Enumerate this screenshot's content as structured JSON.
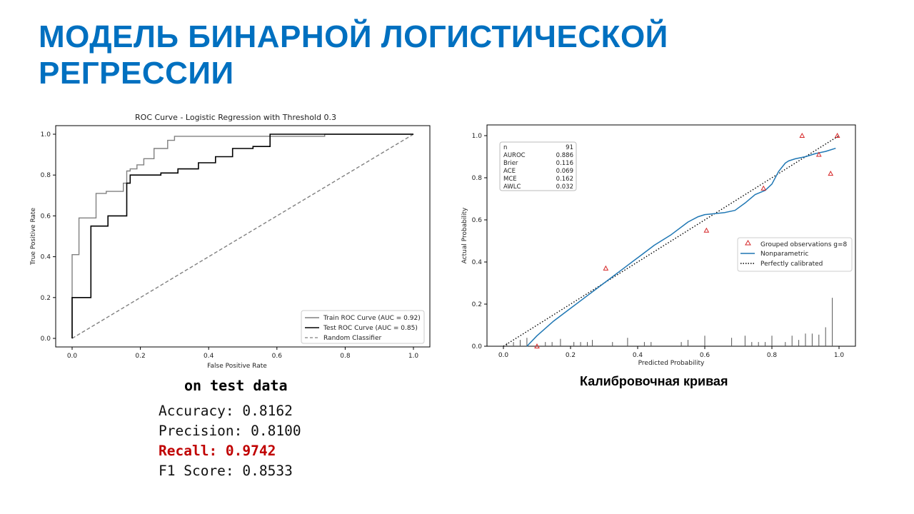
{
  "slide": {
    "title": "МОДЕЛЬ БИНАРНОЙ ЛОГИСТИЧЕСКОЙ РЕГРЕССИИ",
    "roc_subtitle": "on test data",
    "metrics": [
      {
        "text": "Accuracy: 0.8162",
        "highlight": false
      },
      {
        "text": "Precision: 0.8100",
        "highlight": false
      },
      {
        "text": "Recall: 0.9742",
        "highlight": true
      },
      {
        "text": "F1 Score: 0.8533",
        "highlight": false
      }
    ],
    "calibration_caption": "Калибровочная кривая",
    "highlight_color": "#c00000",
    "title_color": "#0070c0"
  },
  "chart_data": [
    {
      "type": "line",
      "title": "ROC Curve - Logistic Regression with Threshold 0.3",
      "xlabel": "False Positive Rate",
      "ylabel": "True Positive Rate",
      "xlim": [
        0,
        1
      ],
      "ylim": [
        0,
        1
      ],
      "xticks": [
        "0.0",
        "0.2",
        "0.4",
        "0.6",
        "0.8",
        "1.0"
      ],
      "yticks": [
        "0.0",
        "0.2",
        "0.4",
        "0.6",
        "0.8",
        "1.0"
      ],
      "legend_position": "lower-right",
      "series": [
        {
          "name": "Train ROC Curve (AUC = 0.92)",
          "color": "#808080",
          "style": "solid",
          "x": [
            0,
            0,
            0.02,
            0.02,
            0.035,
            0.035,
            0.07,
            0.07,
            0.09,
            0.09,
            0.1,
            0.1,
            0.15,
            0.15,
            0.16,
            0.16,
            0.17,
            0.17,
            0.19,
            0.19,
            0.21,
            0.21,
            0.24,
            0.24,
            0.28,
            0.28,
            0.3,
            0.3,
            0.74,
            0.74,
            1.0
          ],
          "y": [
            0,
            0.41,
            0.41,
            0.59,
            0.59,
            0.59,
            0.59,
            0.71,
            0.71,
            0.71,
            0.71,
            0.72,
            0.72,
            0.76,
            0.76,
            0.82,
            0.82,
            0.83,
            0.83,
            0.85,
            0.85,
            0.88,
            0.88,
            0.93,
            0.93,
            0.97,
            0.97,
            0.99,
            0.99,
            1.0,
            1.0
          ]
        },
        {
          "name": "Test ROC Curve (AUC = 0.85)",
          "color": "#000000",
          "style": "solid",
          "x": [
            0,
            0,
            0.055,
            0.055,
            0.08,
            0.08,
            0.105,
            0.105,
            0.16,
            0.16,
            0.17,
            0.17,
            0.21,
            0.21,
            0.26,
            0.26,
            0.31,
            0.31,
            0.37,
            0.37,
            0.42,
            0.42,
            0.47,
            0.47,
            0.53,
            0.53,
            0.58,
            0.58,
            1.0
          ],
          "y": [
            0,
            0.2,
            0.2,
            0.55,
            0.55,
            0.55,
            0.55,
            0.6,
            0.6,
            0.76,
            0.76,
            0.8,
            0.8,
            0.8,
            0.8,
            0.81,
            0.81,
            0.83,
            0.83,
            0.86,
            0.86,
            0.89,
            0.89,
            0.93,
            0.93,
            0.94,
            0.94,
            1.0,
            1.0
          ]
        },
        {
          "name": "Random Classifier",
          "color": "#808080",
          "style": "dashed",
          "x": [
            0,
            1
          ],
          "y": [
            0,
            1
          ]
        }
      ]
    },
    {
      "type": "scatter",
      "xlabel": "Predicted Probability",
      "ylabel": "Actual Probability",
      "xlim": [
        0,
        1
      ],
      "ylim": [
        0,
        1
      ],
      "xticks": [
        "0.0",
        "0.2",
        "0.4",
        "0.6",
        "0.8",
        "1.0"
      ],
      "yticks": [
        "0.0",
        "0.2",
        "0.4",
        "0.6",
        "0.8",
        "1.0"
      ],
      "legend_position": "center-right",
      "stats": [
        {
          "label": "n",
          "value": "91"
        },
        {
          "label": "AUROC",
          "value": "0.886"
        },
        {
          "label": "Brier",
          "value": "0.116"
        },
        {
          "label": "ACE",
          "value": "0.069"
        },
        {
          "label": "MCE",
          "value": "0.162"
        },
        {
          "label": "AWLC",
          "value": "0.032"
        }
      ],
      "series": [
        {
          "name": "Grouped observations g=8",
          "color": "#d62728",
          "marker": "triangle",
          "x": [
            0.1,
            0.305,
            0.605,
            0.775,
            0.89,
            0.94,
            0.975,
            0.995
          ],
          "y": [
            0.0,
            0.37,
            0.55,
            0.75,
            1.0,
            0.91,
            0.82,
            1.0
          ]
        },
        {
          "name": "Nonparametric",
          "color": "#1f77b4",
          "style": "solid",
          "x": [
            0.07,
            0.1,
            0.15,
            0.2,
            0.25,
            0.3,
            0.35,
            0.4,
            0.45,
            0.5,
            0.55,
            0.58,
            0.6,
            0.63,
            0.66,
            0.69,
            0.72,
            0.75,
            0.78,
            0.8,
            0.82,
            0.84,
            0.85,
            0.87,
            0.9,
            0.93,
            0.96,
            0.99
          ],
          "y": [
            0.0,
            0.05,
            0.12,
            0.18,
            0.24,
            0.3,
            0.36,
            0.42,
            0.48,
            0.53,
            0.59,
            0.615,
            0.625,
            0.63,
            0.635,
            0.645,
            0.68,
            0.72,
            0.74,
            0.77,
            0.83,
            0.87,
            0.88,
            0.89,
            0.9,
            0.915,
            0.925,
            0.94
          ]
        },
        {
          "name": "Perfectly calibrated",
          "color": "#000000",
          "style": "dotted",
          "x": [
            0,
            1
          ],
          "y": [
            0,
            1
          ]
        }
      ],
      "rug": {
        "x": [
          0.01,
          0.03,
          0.05,
          0.07,
          0.125,
          0.145,
          0.17,
          0.21,
          0.23,
          0.25,
          0.265,
          0.325,
          0.37,
          0.42,
          0.44,
          0.53,
          0.55,
          0.6,
          0.68,
          0.72,
          0.74,
          0.76,
          0.78,
          0.8,
          0.84,
          0.86,
          0.88,
          0.9,
          0.92,
          0.94,
          0.96,
          0.98
        ],
        "height": [
          0.015,
          0.02,
          0.03,
          0.04,
          0.02,
          0.02,
          0.035,
          0.02,
          0.02,
          0.02,
          0.03,
          0.02,
          0.04,
          0.02,
          0.02,
          0.02,
          0.03,
          0.05,
          0.04,
          0.05,
          0.02,
          0.02,
          0.02,
          0.05,
          0.02,
          0.05,
          0.03,
          0.06,
          0.06,
          0.055,
          0.09,
          0.23
        ]
      }
    }
  ]
}
